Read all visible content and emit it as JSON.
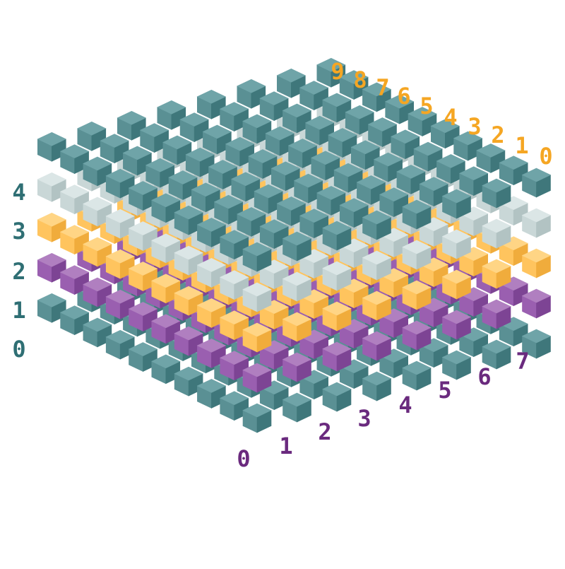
{
  "grid": {
    "layers": 5,
    "rows": 8,
    "cols": 10
  },
  "layer_labels": [
    "0",
    "1",
    "2",
    "3",
    "4"
  ],
  "row_labels": [
    "0",
    "1",
    "2",
    "3",
    "4",
    "5",
    "6",
    "7"
  ],
  "col_labels": [
    "0",
    "1",
    "2",
    "3",
    "4",
    "5",
    "6",
    "7",
    "8",
    "9"
  ],
  "layer_colors": [
    {
      "name": "teal",
      "top": "#6fa4a8",
      "left": "#5a9094",
      "right": "#3f777b"
    },
    {
      "name": "purple",
      "top": "#b07fc0",
      "left": "#9a5fb0",
      "right": "#7d4494"
    },
    {
      "name": "orange",
      "top": "#ffd585",
      "left": "#ffc45e",
      "right": "#f0ac3c"
    },
    {
      "name": "light-gray",
      "top": "#dbe6e6",
      "left": "#c9d7d7",
      "right": "#b2c3c3"
    },
    {
      "name": "teal",
      "top": "#6fa4a8",
      "left": "#5a9094",
      "right": "#3f777b"
    }
  ],
  "label_colors": {
    "layer": "#2f6f74",
    "row": "#6a2a7e",
    "col": "#f5a623"
  }
}
